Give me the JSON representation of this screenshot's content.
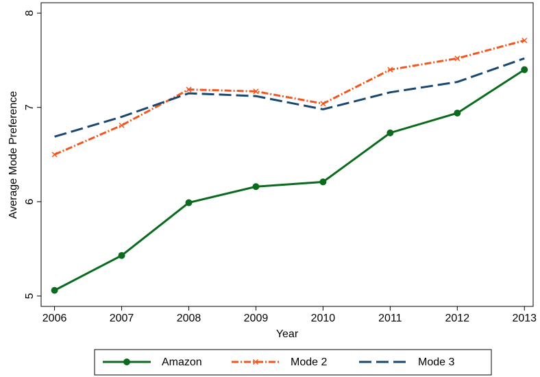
{
  "chart_data": {
    "type": "line",
    "x": [
      2006,
      2007,
      2008,
      2009,
      2010,
      2011,
      2012,
      2013
    ],
    "series": [
      {
        "name": "Amazon",
        "color": "#0a6b1e",
        "values": [
          5.06,
          5.43,
          5.99,
          6.16,
          6.21,
          6.73,
          6.94,
          7.4
        ]
      },
      {
        "name": "Mode 2",
        "color": "#f0561e",
        "values": [
          6.5,
          6.81,
          7.19,
          7.17,
          7.04,
          7.4,
          7.52,
          7.71
        ]
      },
      {
        "name": "Mode 3",
        "color": "#1a476f",
        "values": [
          6.69,
          6.9,
          7.15,
          7.12,
          6.98,
          7.16,
          7.27,
          7.52
        ]
      }
    ],
    "xlabel": "Year",
    "ylabel": "Average Mode Preference",
    "xlim": [
      2005.8,
      2013.13
    ],
    "ylim": [
      4.89,
      8.11
    ],
    "xticks": [
      2006,
      2007,
      2008,
      2009,
      2010,
      2011,
      2012,
      2013
    ],
    "yticks": [
      5,
      6,
      7,
      8
    ],
    "legend": "bottom"
  }
}
